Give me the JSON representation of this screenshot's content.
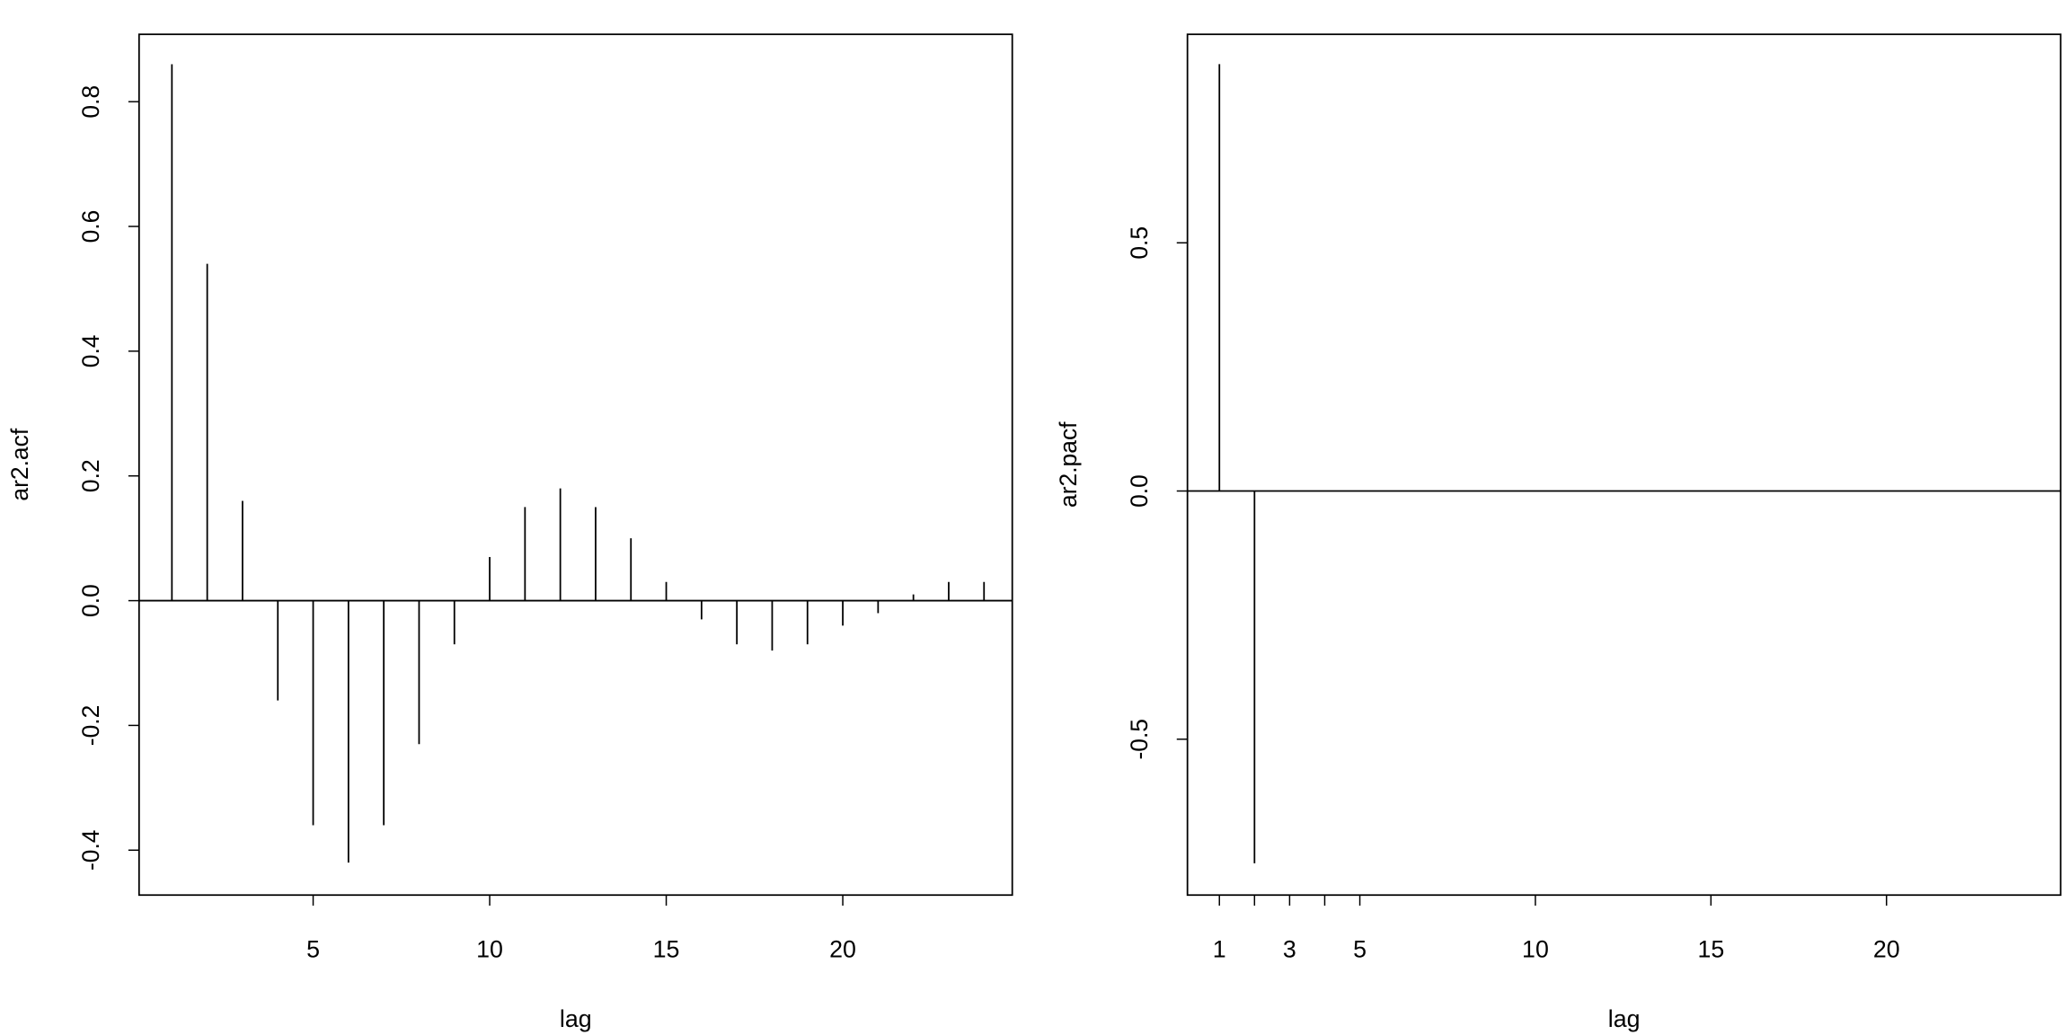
{
  "chart_data": [
    {
      "type": "stem",
      "x_label": "lag",
      "y_label": "ar2.acf",
      "x": [
        1,
        2,
        3,
        4,
        5,
        6,
        7,
        8,
        9,
        10,
        11,
        12,
        13,
        14,
        15,
        16,
        17,
        18,
        19,
        20,
        21,
        22,
        23,
        24
      ],
      "values": [
        0.86,
        0.54,
        0.16,
        -0.16,
        -0.36,
        -0.42,
        -0.36,
        -0.23,
        -0.07,
        0.07,
        0.15,
        0.18,
        0.15,
        0.1,
        0.03,
        -0.03,
        -0.07,
        -0.08,
        -0.07,
        -0.04,
        -0.02,
        0.01,
        0.03,
        0.03
      ],
      "color": "#000000",
      "xlim": [
        0.07,
        24.8
      ],
      "xticks": [
        5,
        10,
        15,
        20
      ],
      "ylim": [
        -0.472,
        0.908
      ],
      "yticks": [
        -0.4,
        -0.2,
        {
          "value": 0,
          "label": "0.0"
        },
        0.2,
        0.4,
        0.6,
        0.8
      ],
      "hline": 0
    },
    {
      "type": "stem",
      "x_label": "lag",
      "y_label": "ar2.pacf",
      "x": [
        1,
        2,
        3,
        4,
        5,
        6,
        7,
        8,
        9,
        10,
        11,
        12,
        13,
        14,
        15,
        16,
        17,
        18,
        19,
        20,
        21,
        22,
        23,
        24
      ],
      "values": [
        0.86,
        -0.75,
        0,
        0,
        0,
        0,
        0,
        0,
        0,
        0,
        0,
        0,
        0,
        0,
        0,
        0,
        0,
        0,
        0,
        0,
        0,
        0,
        0,
        0
      ],
      "color": "#000000",
      "xlim": [
        0.09,
        24.96
      ],
      "xticks": [
        1,
        3,
        5,
        10,
        15,
        20
      ],
      "minor_xticks": [
        2,
        4
      ],
      "ylim": [
        -0.814,
        0.92
      ],
      "yticks": [
        -0.5,
        {
          "value": 0,
          "label": "0.0"
        },
        0.5
      ],
      "hline": 0
    }
  ]
}
